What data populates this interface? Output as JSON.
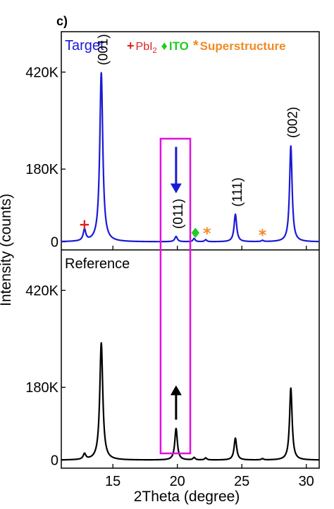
{
  "panel_label": "c)",
  "chart_data": {
    "type": "line",
    "xlabel": "2Theta (degree)",
    "ylabel": "Intensity (counts)",
    "xlim": [
      11,
      31
    ],
    "x_ticks": [
      15,
      20,
      25,
      30
    ],
    "y_ticks": [
      0,
      180000,
      420000
    ],
    "y_tick_labels": [
      "0",
      "180K",
      "420K"
    ],
    "panels": [
      {
        "series_name": "Target",
        "color": "#1a1ad6",
        "ylim": [
          -20000,
          520000
        ],
        "legend": [
          {
            "symbol": "+",
            "text": "PbI",
            "subscript": "2",
            "color": "#e02020"
          },
          {
            "symbol": "♦",
            "text": "ITO",
            "subscript": "",
            "color": "#22cc22"
          },
          {
            "symbol": "*",
            "text": "Superstructure",
            "subscript": "",
            "color": "#f08a24"
          }
        ],
        "peaks": [
          {
            "x": 12.8,
            "y": 28000,
            "w": 0.12
          },
          {
            "x": 14.1,
            "y": 418000,
            "w": 0.14
          },
          {
            "x": 19.9,
            "y": 13000,
            "w": 0.12
          },
          {
            "x": 21.3,
            "y": 8000,
            "w": 0.1
          },
          {
            "x": 22.2,
            "y": 5000,
            "w": 0.1
          },
          {
            "x": 24.5,
            "y": 68000,
            "w": 0.12
          },
          {
            "x": 26.6,
            "y": 3000,
            "w": 0.1
          },
          {
            "x": 28.8,
            "y": 237000,
            "w": 0.12
          }
        ],
        "peak_labels": [
          {
            "text": "(001)",
            "x": 14.1,
            "y": 430000
          },
          {
            "text": "(011)",
            "x": 19.9,
            "y": 25000
          },
          {
            "text": "(111)",
            "x": 24.5,
            "y": 80000
          },
          {
            "text": "(002)",
            "x": 28.8,
            "y": 250000
          }
        ],
        "markers": [
          {
            "symbol": "+",
            "x": 12.8,
            "y": 42000,
            "color": "#e02020"
          },
          {
            "symbol": "♦",
            "x": 21.4,
            "y": 20000,
            "color": "#22cc22"
          },
          {
            "symbol": "*",
            "x": 22.3,
            "y": 18000,
            "color": "#f08a24"
          },
          {
            "symbol": "*",
            "x": 26.6,
            "y": 14000,
            "color": "#f08a24"
          }
        ]
      },
      {
        "series_name": "Reference",
        "color": "#000000",
        "ylim": [
          -20000,
          520000
        ],
        "peaks": [
          {
            "x": 12.8,
            "y": 14000,
            "w": 0.12
          },
          {
            "x": 14.1,
            "y": 290000,
            "w": 0.14
          },
          {
            "x": 19.9,
            "y": 78000,
            "w": 0.12
          },
          {
            "x": 21.3,
            "y": 6000,
            "w": 0.1
          },
          {
            "x": 22.2,
            "y": 5000,
            "w": 0.1
          },
          {
            "x": 24.5,
            "y": 54000,
            "w": 0.12
          },
          {
            "x": 26.6,
            "y": 3000,
            "w": 0.1
          },
          {
            "x": 28.8,
            "y": 178000,
            "w": 0.12
          }
        ]
      }
    ],
    "highlight_box": {
      "x_range": [
        18.7,
        21.0
      ],
      "color": "#e010e0"
    },
    "arrows": [
      {
        "panel": 0,
        "direction": "down",
        "x": 19.9,
        "y_from": 235000,
        "y_to": 120000,
        "color": "#1a1ad6"
      },
      {
        "panel": 1,
        "direction": "up",
        "x": 19.9,
        "y_from": 100000,
        "y_to": 185000,
        "color": "#000000"
      }
    ]
  }
}
